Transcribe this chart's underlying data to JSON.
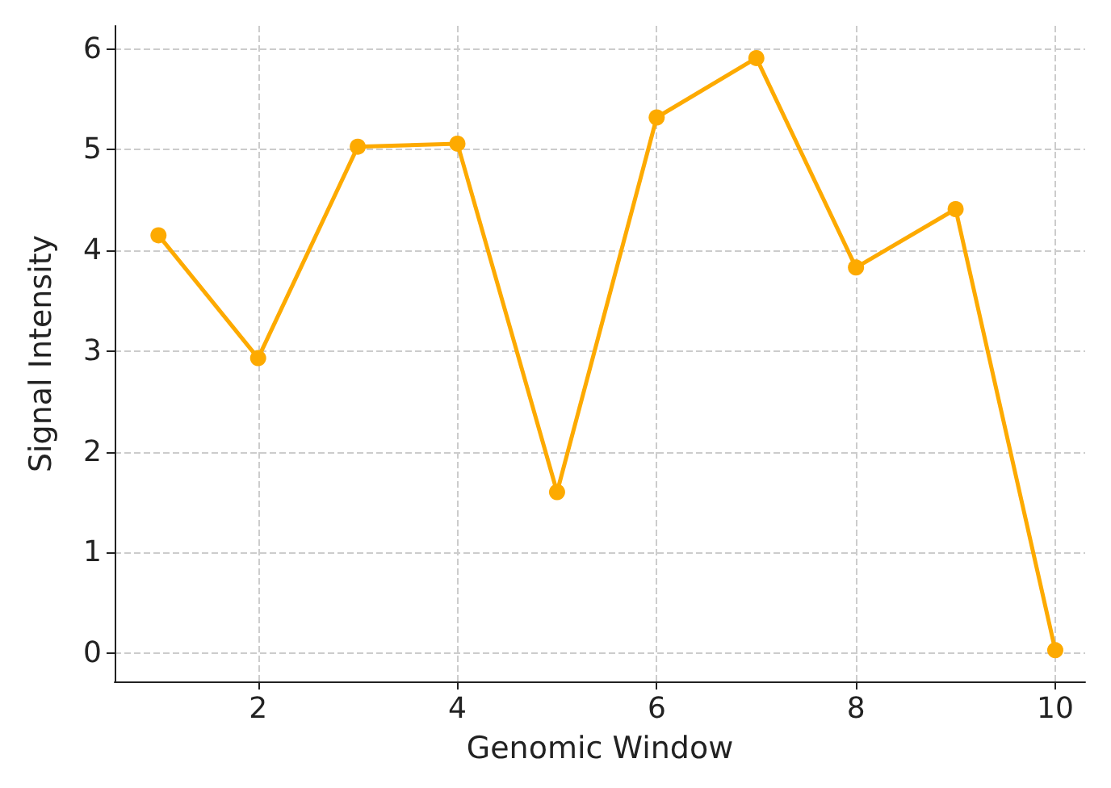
{
  "chart_data": {
    "type": "line",
    "xlabel": "Genomic Window",
    "ylabel": "Signal Intensity",
    "x": [
      1,
      2,
      3,
      4,
      5,
      6,
      7,
      8,
      9,
      10
    ],
    "series": [
      {
        "color": "#fdaa00",
        "values": [
          4.15,
          2.93,
          5.03,
          5.06,
          1.6,
          5.32,
          5.91,
          3.83,
          4.41,
          0.03
        ]
      }
    ],
    "xlim": [
      0.56,
      10.3
    ],
    "xticks": [
      2,
      4,
      6,
      8,
      10
    ],
    "ylim": [
      -0.28,
      6.23
    ],
    "yticks": [
      0,
      1,
      2,
      3,
      4,
      5,
      6
    ],
    "grid": true,
    "marker": "circle",
    "line_style": "solid"
  }
}
